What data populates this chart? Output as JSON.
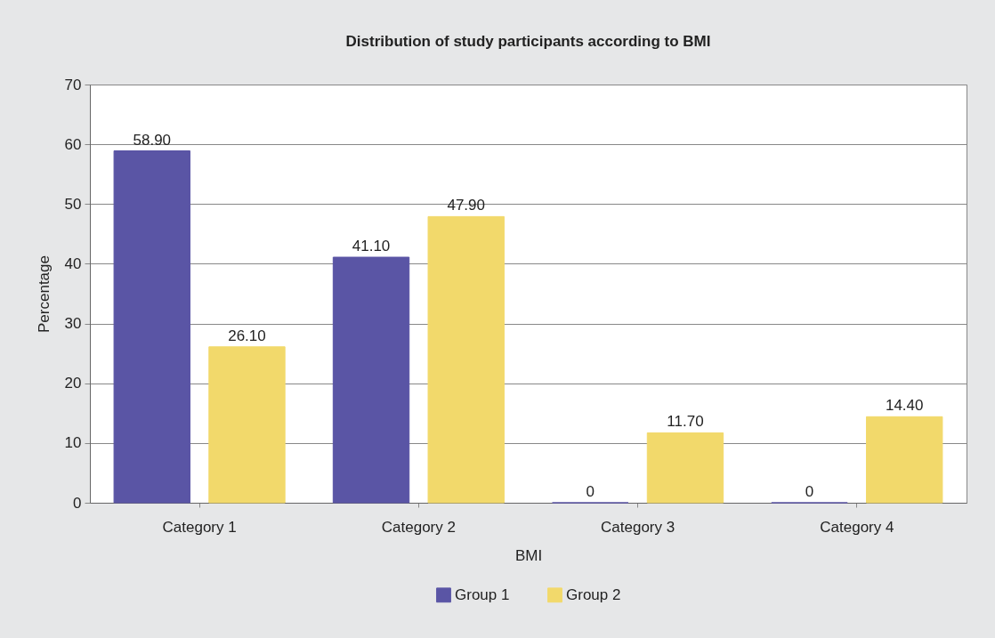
{
  "chart_data": {
    "type": "bar",
    "title": "Distribution of study participants according to BMI",
    "xlabel": "BMI",
    "ylabel": "Percentage",
    "categories": [
      "Category 1",
      "Category 2",
      "Category 3",
      "Category 4"
    ],
    "series": [
      {
        "name": "Group 1",
        "color": "#5a55a5",
        "values": [
          58.9,
          41.1,
          0,
          0
        ],
        "value_labels": [
          "58.90",
          "41.10",
          "0",
          "0"
        ]
      },
      {
        "name": "Group 2",
        "color": "#f2d96b",
        "values": [
          26.1,
          47.9,
          11.7,
          14.4
        ],
        "value_labels": [
          "26.10",
          "47.90",
          "11.70",
          "14.40"
        ]
      }
    ],
    "ylim": [
      0,
      70
    ],
    "yticks": [
      0,
      10,
      20,
      30,
      40,
      50,
      60,
      70
    ],
    "grid": "y",
    "legend": "bottom"
  }
}
